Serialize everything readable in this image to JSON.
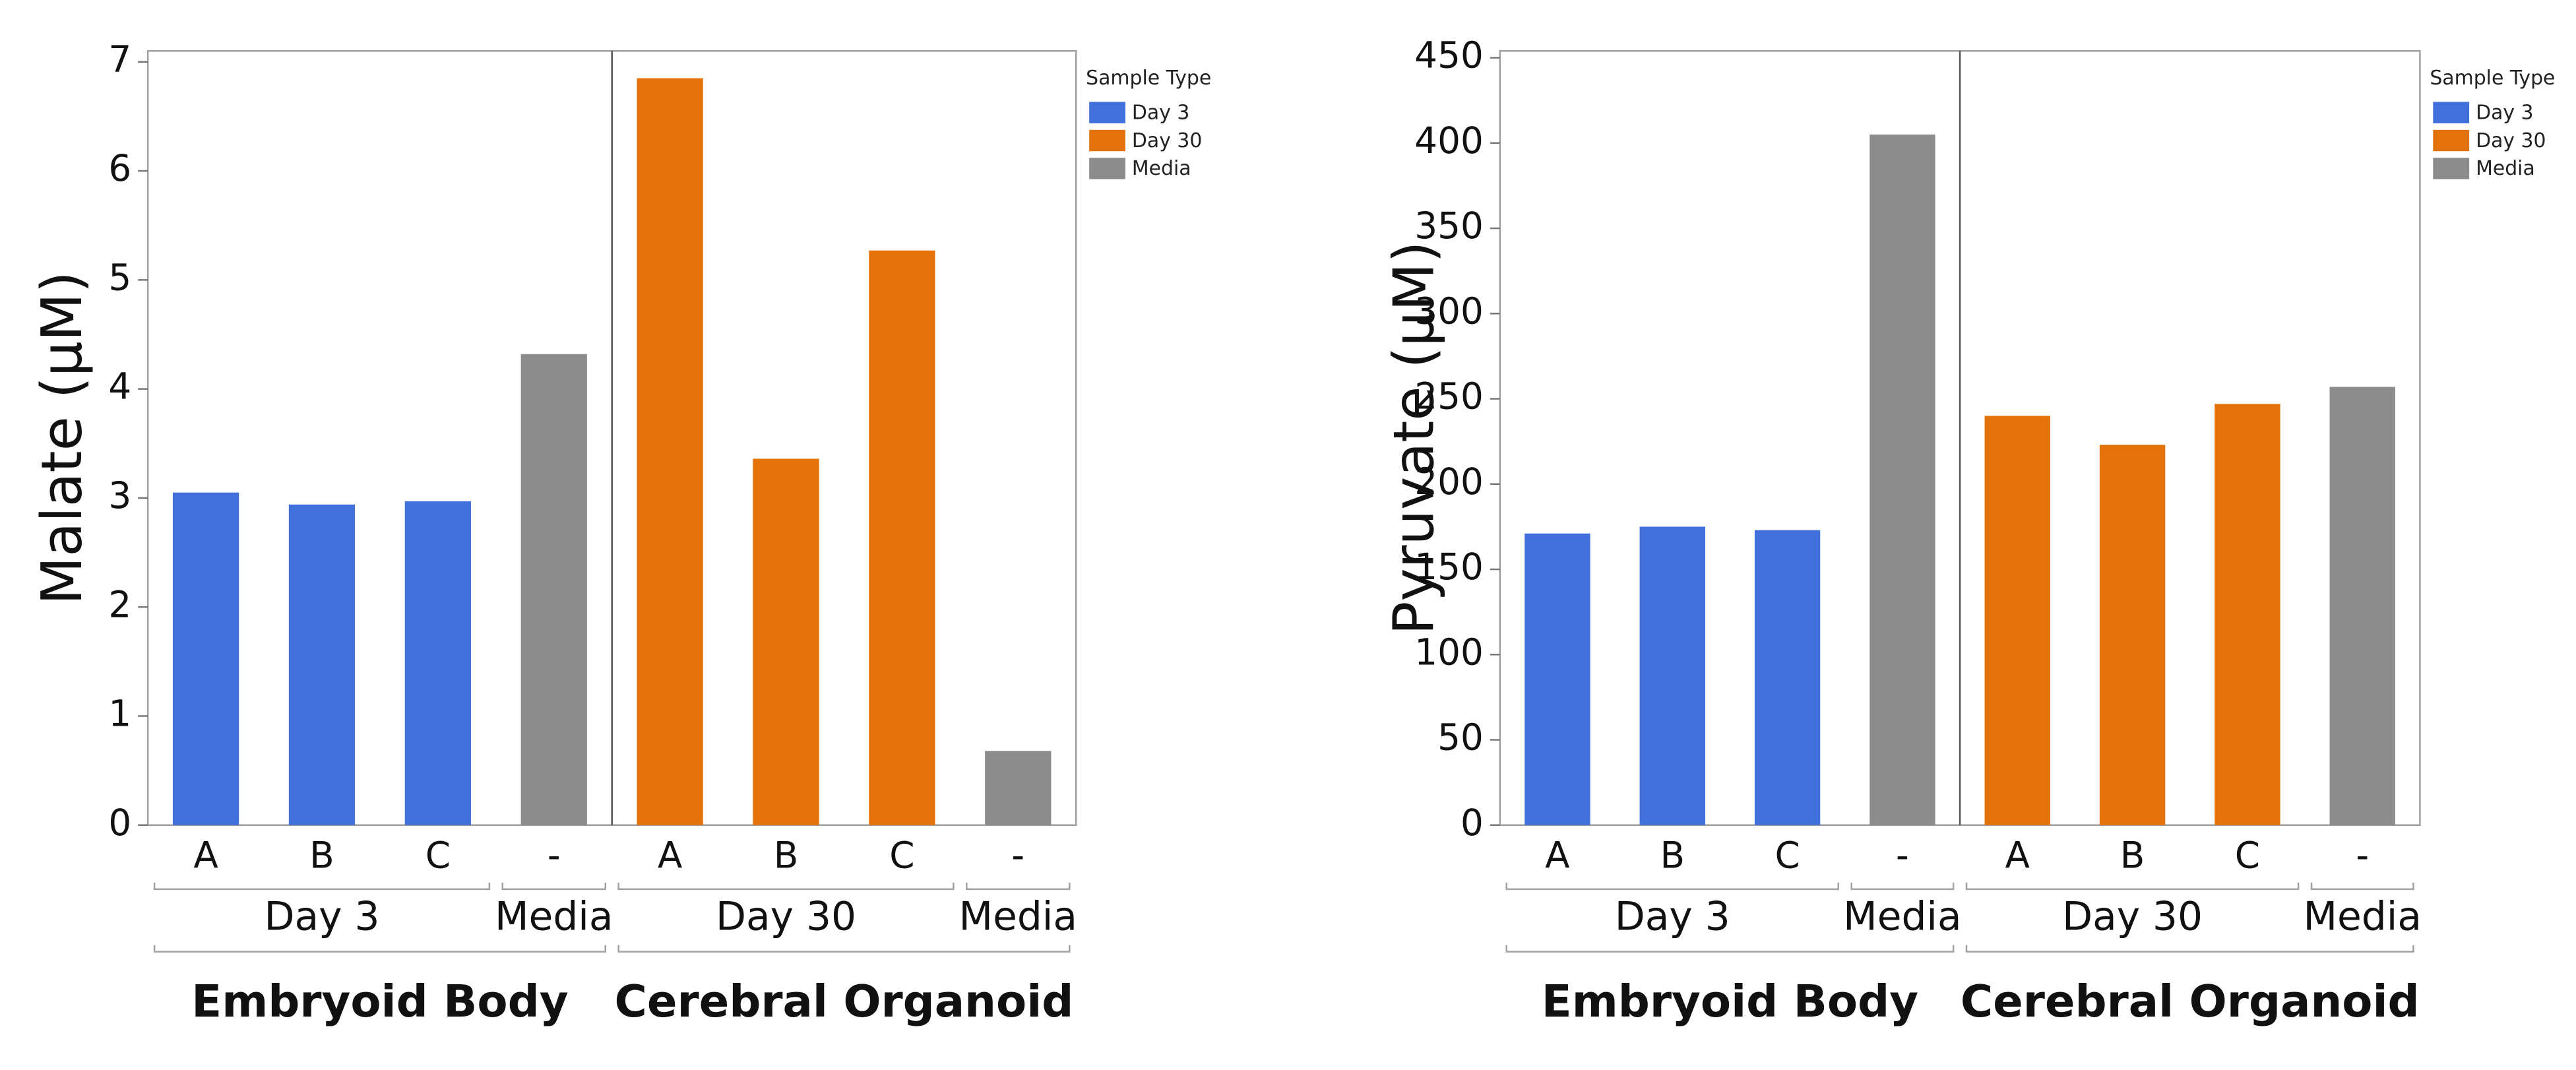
{
  "chart_data": [
    {
      "type": "bar",
      "y_label": "Malate (µM)",
      "ylim": [
        0,
        7.1
      ],
      "yticks": [
        0,
        1,
        2,
        3,
        4,
        5,
        6,
        7
      ],
      "legend_title": "Sample Type",
      "groups": [
        {
          "name": "Embryoid Body",
          "subgroups": [
            {
              "name": "Day 3",
              "categories": [
                "A",
                "B",
                "C"
              ]
            },
            {
              "name": "Media",
              "categories": [
                "-"
              ]
            }
          ]
        },
        {
          "name": "Cerebral Organoid",
          "subgroups": [
            {
              "name": "Day 30",
              "categories": [
                "A",
                "B",
                "C"
              ]
            },
            {
              "name": "Media",
              "categories": [
                "-"
              ]
            }
          ]
        }
      ],
      "series": [
        {
          "name": "Day 3",
          "color": "#4170dd",
          "values": [
            3.05,
            2.94,
            2.97,
            null,
            null,
            null,
            null,
            null
          ]
        },
        {
          "name": "Day 30",
          "color": "#e3720a",
          "values": [
            null,
            null,
            null,
            null,
            6.85,
            3.36,
            5.27,
            null
          ]
        },
        {
          "name": "Media",
          "color": "#8c8c8c",
          "values": [
            null,
            null,
            null,
            4.32,
            null,
            null,
            null,
            0.68
          ]
        }
      ]
    },
    {
      "type": "bar",
      "y_label": "Pyruvate (µM)",
      "ylim": [
        0,
        454
      ],
      "yticks": [
        0,
        50,
        100,
        150,
        200,
        250,
        300,
        350,
        400,
        450
      ],
      "legend_title": "Sample Type",
      "groups": [
        {
          "name": "Embryoid Body",
          "subgroups": [
            {
              "name": "Day 3",
              "categories": [
                "A",
                "B",
                "C"
              ]
            },
            {
              "name": "Media",
              "categories": [
                "-"
              ]
            }
          ]
        },
        {
          "name": "Cerebral Organoid",
          "subgroups": [
            {
              "name": "Day 30",
              "categories": [
                "A",
                "B",
                "C"
              ]
            },
            {
              "name": "Media",
              "categories": [
                "-"
              ]
            }
          ]
        }
      ],
      "series": [
        {
          "name": "Day 3",
          "color": "#4170dd",
          "values": [
            171,
            175,
            173,
            null,
            null,
            null,
            null,
            null
          ]
        },
        {
          "name": "Day 30",
          "color": "#e3720a",
          "values": [
            null,
            null,
            null,
            null,
            240,
            223,
            247,
            null
          ]
        },
        {
          "name": "Media",
          "color": "#8c8c8c",
          "values": [
            null,
            null,
            null,
            405,
            null,
            null,
            null,
            257
          ]
        }
      ]
    }
  ]
}
